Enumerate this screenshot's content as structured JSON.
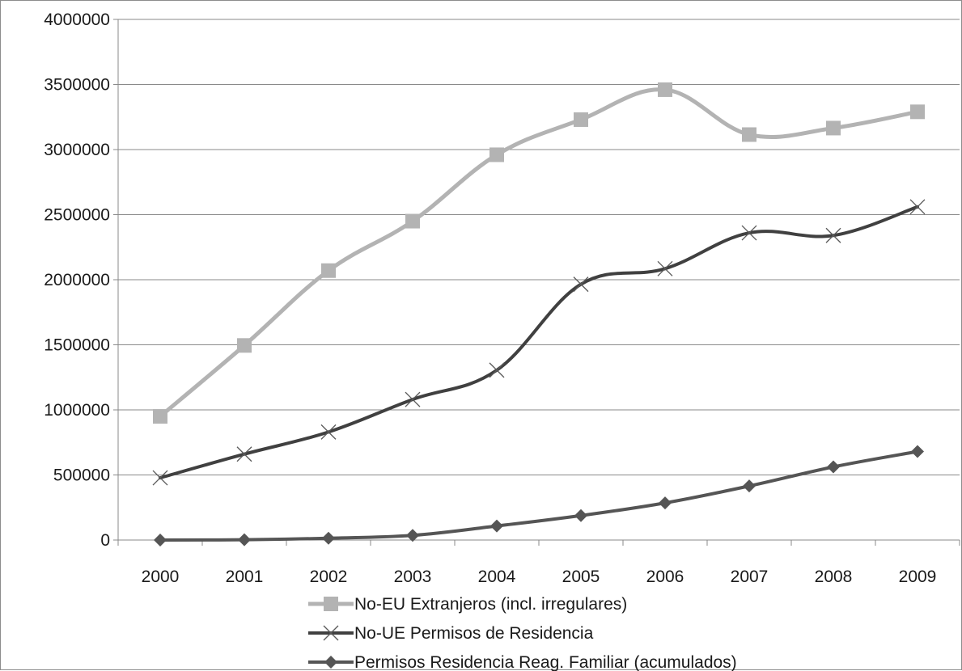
{
  "chart_data": {
    "type": "line",
    "title": "",
    "xlabel": "",
    "ylabel": "",
    "categories": [
      "2000",
      "2001",
      "2002",
      "2003",
      "2004",
      "2005",
      "2006",
      "2007",
      "2008",
      "2009"
    ],
    "ylim": [
      0,
      4000000
    ],
    "yticks": [
      "0",
      "500000",
      "1000000",
      "1500000",
      "2000000",
      "2500000",
      "3000000",
      "3500000",
      "4000000"
    ],
    "grid": true,
    "legend_position": "bottom",
    "series": [
      {
        "name": "No-EU Extranjeros (incl. irregulares)",
        "marker": "square",
        "color": "#b3b3b3",
        "values": [
          950000,
          1495000,
          2070000,
          2450000,
          2960000,
          3230000,
          3460000,
          3115000,
          3165000,
          3290000
        ]
      },
      {
        "name": "No-UE Permisos de Residencia",
        "marker": "x",
        "color": "#404040",
        "values": [
          478000,
          660000,
          830000,
          1080000,
          1305000,
          1965000,
          2085000,
          2360000,
          2340000,
          2560000
        ]
      },
      {
        "name": "Permisos Residencia Reag. Familiar (acumulados)",
        "marker": "diamond",
        "color": "#555555",
        "values": [
          0,
          2000,
          14000,
          36000,
          108000,
          188000,
          285000,
          415000,
          562000,
          680000
        ]
      }
    ]
  }
}
